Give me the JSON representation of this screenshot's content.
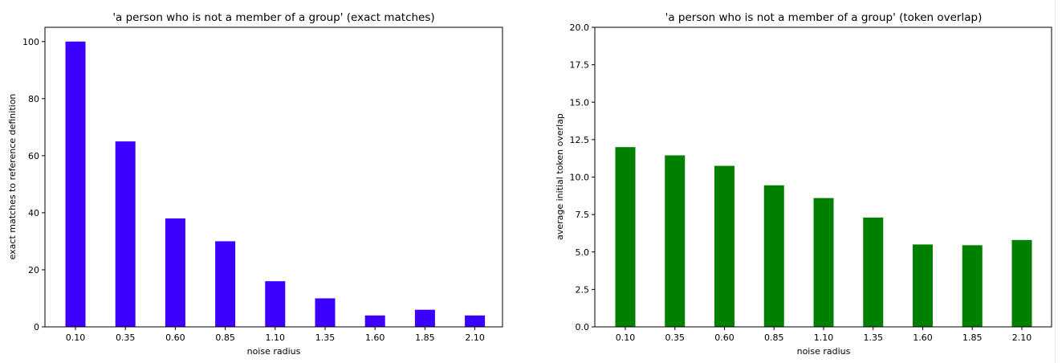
{
  "chart_data": [
    {
      "type": "bar",
      "title": "'a person who is not a member of a group' (exact matches)",
      "xlabel": "noise radius",
      "ylabel": "exact matches to reference definition",
      "categories": [
        "0.10",
        "0.35",
        "0.60",
        "0.85",
        "1.10",
        "1.35",
        "1.60",
        "1.85",
        "2.10"
      ],
      "values": [
        100,
        65,
        38,
        30,
        16,
        10,
        4,
        6,
        4
      ],
      "ylim": [
        0,
        105
      ],
      "yticks": [
        0,
        20,
        40,
        60,
        80,
        100
      ],
      "ytick_labels": [
        "0",
        "20",
        "40",
        "60",
        "80",
        "100"
      ],
      "color": "#3c00ff",
      "grid": false,
      "legend": "none"
    },
    {
      "type": "bar",
      "title": "'a person who is not a member of a group' (token overlap)",
      "xlabel": "noise radius",
      "ylabel": "average initial token overlap",
      "categories": [
        "0.10",
        "0.35",
        "0.60",
        "0.85",
        "1.10",
        "1.35",
        "1.60",
        "1.85",
        "2.10"
      ],
      "values": [
        12.0,
        11.45,
        10.75,
        9.45,
        8.6,
        7.3,
        5.5,
        5.45,
        5.8
      ],
      "ylim": [
        0,
        20
      ],
      "yticks": [
        0,
        2.5,
        5,
        7.5,
        10,
        12.5,
        15,
        17.5,
        20
      ],
      "ytick_labels": [
        "0.0",
        "2.5",
        "5.0",
        "7.5",
        "10.0",
        "12.5",
        "15.0",
        "17.5",
        "20.0"
      ],
      "color": "#008000",
      "grid": false,
      "legend": "none"
    }
  ]
}
